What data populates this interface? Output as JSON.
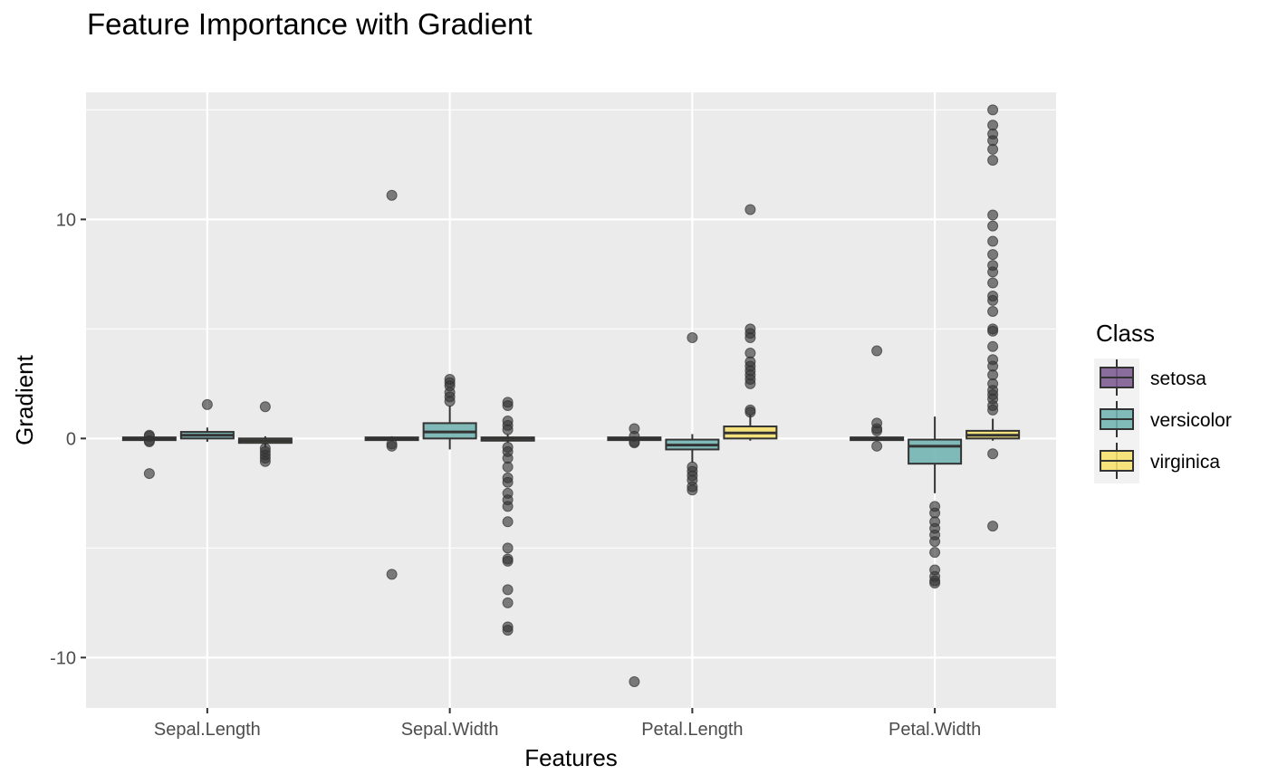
{
  "chart_data": {
    "type": "boxplot",
    "title": "Feature Importance with Gradient",
    "xlabel": "Features",
    "ylabel": "Gradient",
    "ylim": [
      -12.3,
      15.8
    ],
    "y_ticks": [
      -10,
      0,
      10
    ],
    "categories": [
      "Sepal.Length",
      "Sepal.Width",
      "Petal.Length",
      "Petal.Width"
    ],
    "legend": {
      "title": "Class",
      "position": "right",
      "items": [
        {
          "name": "setosa",
          "color": "#7b5a8f"
        },
        {
          "name": "versicolor",
          "color": "#6fb3b0"
        },
        {
          "name": "virginica",
          "color": "#f6e06a"
        }
      ]
    },
    "series": [
      {
        "name": "setosa",
        "color": "#7b5a8f",
        "boxes": [
          {
            "category": "Sepal.Length",
            "q1": -0.05,
            "median": 0.0,
            "q3": 0.05,
            "whisker_low": -0.1,
            "whisker_high": 0.1,
            "outliers": [
              -1.6,
              0.15,
              0.1,
              -0.1,
              -0.15
            ]
          },
          {
            "category": "Sepal.Width",
            "q1": -0.05,
            "median": 0.0,
            "q3": 0.05,
            "whisker_low": -0.1,
            "whisker_high": 0.1,
            "outliers": [
              11.1,
              -6.2,
              -0.25,
              -0.35
            ]
          },
          {
            "category": "Petal.Length",
            "q1": -0.05,
            "median": 0.0,
            "q3": 0.05,
            "whisker_low": -0.1,
            "whisker_high": 0.1,
            "outliers": [
              0.45,
              0.1,
              -0.15,
              -0.2,
              -11.1
            ]
          },
          {
            "category": "Petal.Width",
            "q1": -0.05,
            "median": 0.0,
            "q3": 0.05,
            "whisker_low": -0.1,
            "whisker_high": 0.1,
            "outliers": [
              4.0,
              0.7,
              0.45,
              0.35,
              -0.35
            ]
          }
        ]
      },
      {
        "name": "versicolor",
        "color": "#6fb3b0",
        "boxes": [
          {
            "category": "Sepal.Length",
            "q1": 0.0,
            "median": 0.15,
            "q3": 0.3,
            "whisker_low": -0.15,
            "whisker_high": 0.5,
            "outliers": [
              1.55
            ]
          },
          {
            "category": "Sepal.Width",
            "q1": 0.0,
            "median": 0.3,
            "q3": 0.7,
            "whisker_low": -0.5,
            "whisker_high": 1.5,
            "outliers": [
              1.7,
              1.9,
              2.1,
              2.4,
              2.55,
              2.7
            ]
          },
          {
            "category": "Petal.Length",
            "q1": -0.5,
            "median": -0.3,
            "q3": -0.05,
            "whisker_low": -1.1,
            "whisker_high": 0.2,
            "outliers": [
              4.6,
              -1.3,
              -1.5,
              -1.7,
              -1.9,
              -2.2,
              -2.35
            ]
          },
          {
            "category": "Petal.Width",
            "q1": -1.15,
            "median": -0.35,
            "q3": -0.05,
            "whisker_low": -2.5,
            "whisker_high": 1.0,
            "outliers": [
              -3.1,
              -3.4,
              -3.8,
              -4.1,
              -4.4,
              -4.7,
              -5.2,
              -6.0,
              -6.3,
              -6.5,
              -6.6
            ]
          }
        ]
      },
      {
        "name": "virginica",
        "color": "#f6e06a",
        "boxes": [
          {
            "category": "Sepal.Length",
            "q1": -0.2,
            "median": -0.1,
            "q3": 0.0,
            "whisker_low": -0.4,
            "whisker_high": 0.1,
            "outliers": [
              1.45,
              -0.45,
              -0.6,
              -0.75,
              -0.9,
              -1.05
            ]
          },
          {
            "category": "Sepal.Width",
            "q1": -0.1,
            "median": 0.0,
            "q3": 0.05,
            "whisker_low": -0.2,
            "whisker_high": 0.2,
            "outliers": [
              1.65,
              1.5,
              0.8,
              0.6,
              0.4,
              -0.4,
              -0.6,
              -0.9,
              -1.3,
              -1.8,
              -2.0,
              -2.5,
              -2.8,
              -3.1,
              -3.8,
              -5.0,
              -5.5,
              -5.6,
              -6.9,
              -7.5,
              -8.6,
              -8.75
            ]
          },
          {
            "category": "Petal.Length",
            "q1": 0.0,
            "median": 0.25,
            "q3": 0.55,
            "whisker_low": -0.1,
            "whisker_high": 1.1,
            "outliers": [
              10.45,
              5.0,
              4.8,
              4.6,
              3.9,
              3.5,
              3.3,
              3.1,
              2.9,
              2.7,
              2.5,
              1.3,
              1.2
            ]
          },
          {
            "category": "Petal.Width",
            "q1": 0.0,
            "median": 0.15,
            "q3": 0.35,
            "whisker_low": -0.1,
            "whisker_high": 0.9,
            "outliers": [
              15.0,
              14.3,
              13.9,
              13.6,
              13.2,
              12.7,
              10.2,
              9.7,
              9.0,
              8.4,
              7.9,
              7.6,
              7.1,
              6.5,
              6.3,
              5.8,
              5.0,
              4.9,
              4.2,
              3.6,
              3.3,
              2.9,
              2.5,
              2.2,
              2.0,
              1.8,
              1.5,
              1.3,
              -0.7,
              -4.0
            ]
          }
        ]
      }
    ]
  }
}
